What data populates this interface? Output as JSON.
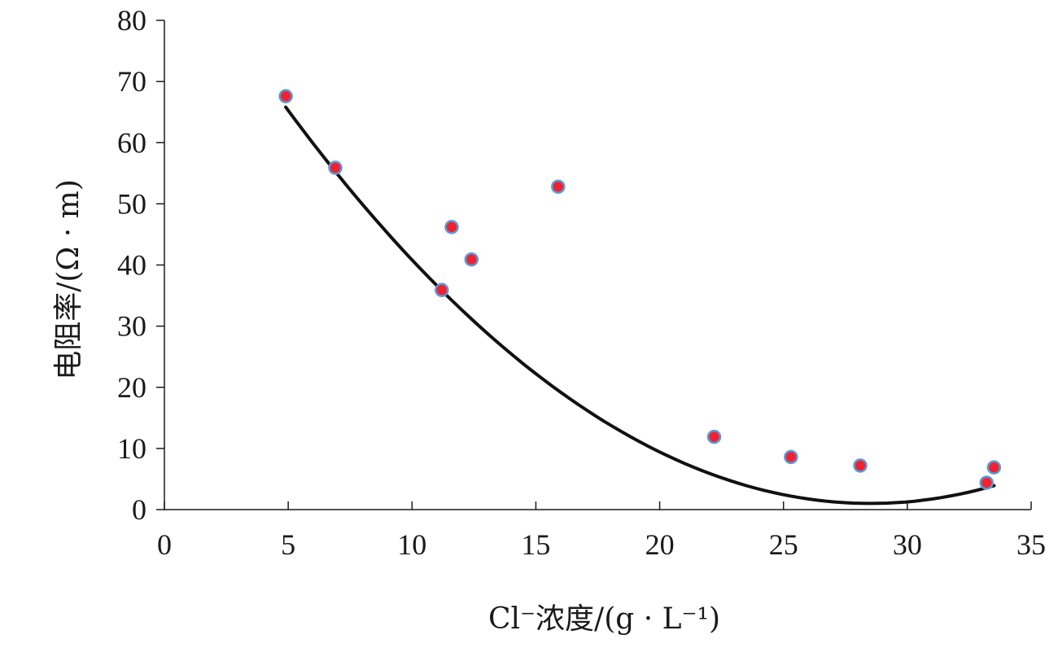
{
  "chart_data": {
    "type": "scatter",
    "title": "",
    "xlabel": "Cl⁻浓度/(g · L⁻¹)",
    "ylabel": "电阻率/(Ω · m)",
    "xlim": [
      0,
      35
    ],
    "ylim": [
      0,
      80
    ],
    "x_ticks": [
      0,
      5,
      10,
      15,
      20,
      25,
      30,
      35
    ],
    "y_ticks": [
      0,
      10,
      20,
      30,
      40,
      50,
      60,
      70,
      80
    ],
    "grid": false,
    "legend": "none",
    "colors": {
      "point_fill": "#ee2233",
      "point_stroke": "#5b9bd5",
      "trend_line": "#111111"
    },
    "points": [
      {
        "x": 4.9,
        "y": 67.6
      },
      {
        "x": 6.9,
        "y": 55.9
      },
      {
        "x": 11.2,
        "y": 35.9
      },
      {
        "x": 11.6,
        "y": 46.2
      },
      {
        "x": 12.4,
        "y": 40.9
      },
      {
        "x": 15.9,
        "y": 52.8
      },
      {
        "x": 22.2,
        "y": 11.9
      },
      {
        "x": 25.3,
        "y": 8.6
      },
      {
        "x": 28.1,
        "y": 7.2
      },
      {
        "x": 33.2,
        "y": 4.4
      },
      {
        "x": 33.5,
        "y": 6.9
      }
    ],
    "trendline": {
      "type": "polynomial",
      "x_range": [
        4.9,
        33.5
      ],
      "coefficients": [
        95.5,
        -6.63,
        0.1163
      ]
    }
  }
}
